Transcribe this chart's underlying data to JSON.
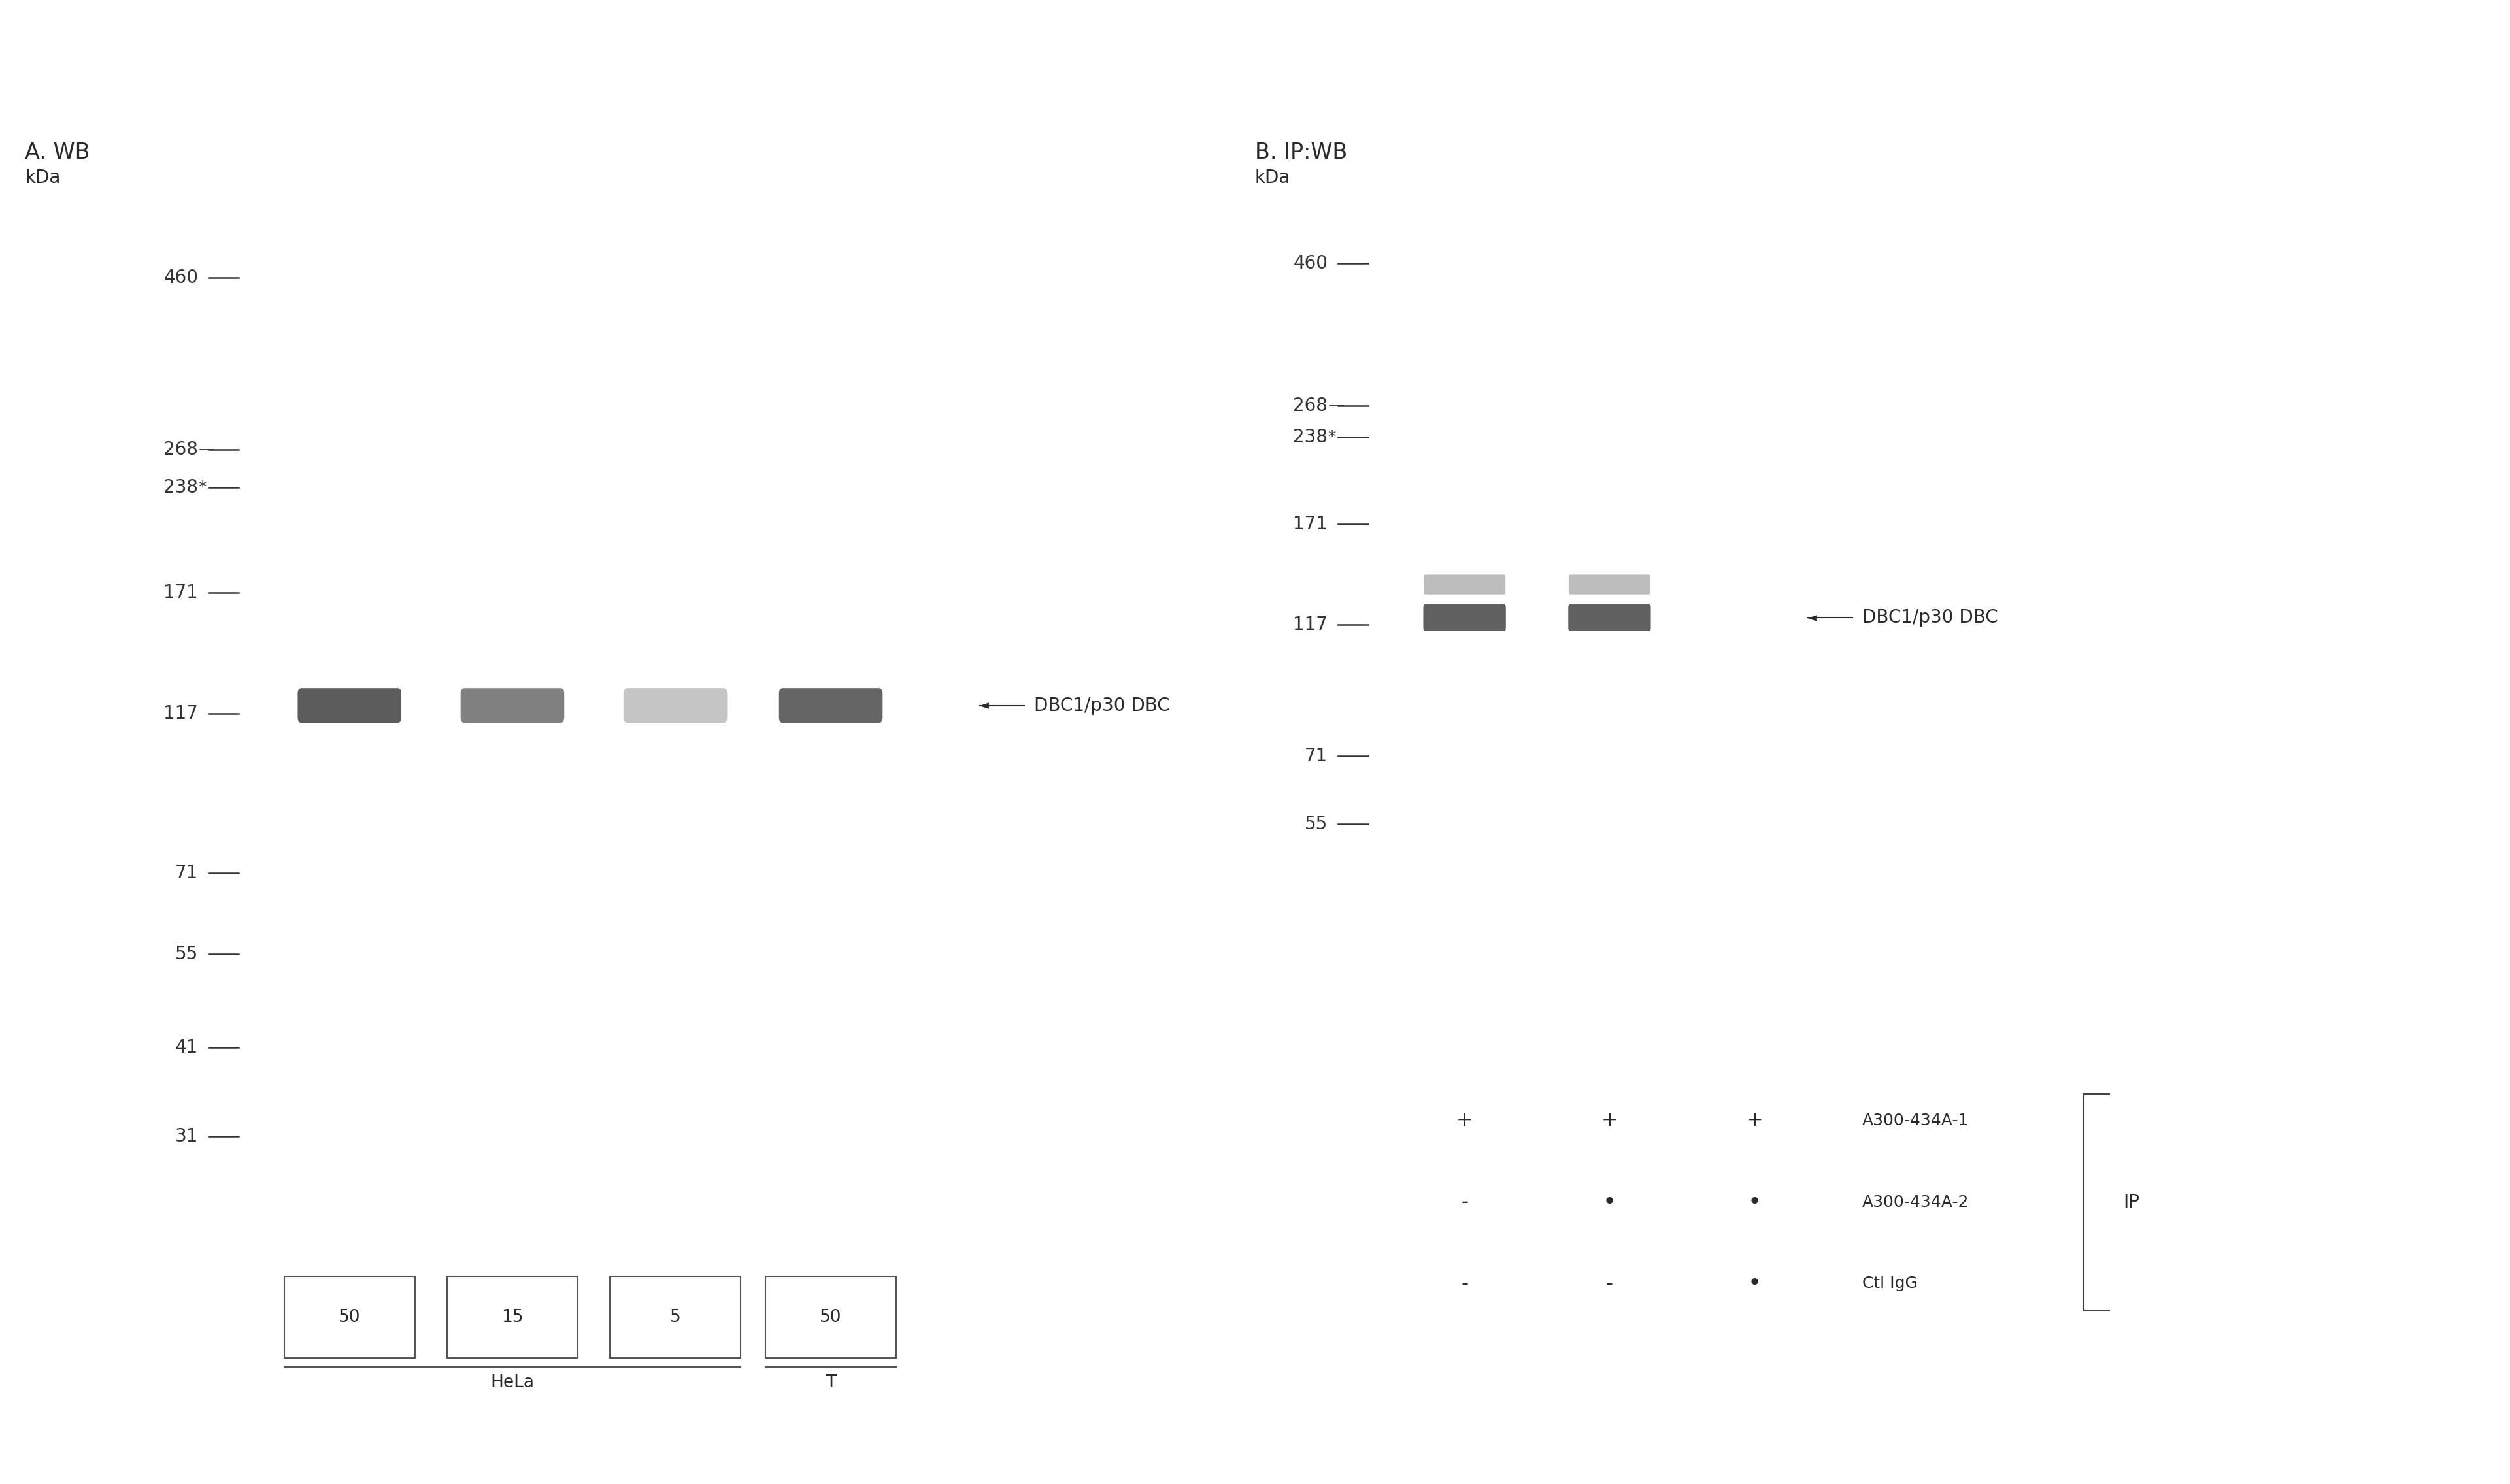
{
  "white_bg": "#ffffff",
  "gel_bg": "#e2e2e2",
  "text_color": "#2a2a2a",
  "panel_A_title": "A. WB",
  "panel_B_title": "B. IP:WB",
  "kda_label": "kDa",
  "ladder_A": [
    460,
    268,
    238,
    171,
    117,
    71,
    55,
    41,
    31
  ],
  "ladder_B": [
    460,
    268,
    238,
    171,
    117,
    71,
    55
  ],
  "band_label": "DBC1/p30 DBC",
  "panel_A_lanes": [
    "50",
    "15",
    "5",
    "50"
  ],
  "panel_A_group_hela": "HeLa",
  "panel_A_group_t": "T",
  "panel_B_antibodies": [
    {
      "name": "A300-434A-1",
      "dots": [
        "+",
        "+",
        "+"
      ]
    },
    {
      "name": "A300-434A-2",
      "dots": [
        "-",
        "•",
        "•"
      ]
    },
    {
      "name": "Ctl IgG",
      "dots": [
        "-",
        "-",
        "•"
      ]
    }
  ],
  "panel_B_ip_label": "IP",
  "band_color_dark": "#4a4a4a",
  "band_color_med": "#6e6e6e",
  "band_color_light": "#9a9a9a",
  "tick_color": "#333333",
  "ladder_lo": 20,
  "ladder_hi": 600
}
